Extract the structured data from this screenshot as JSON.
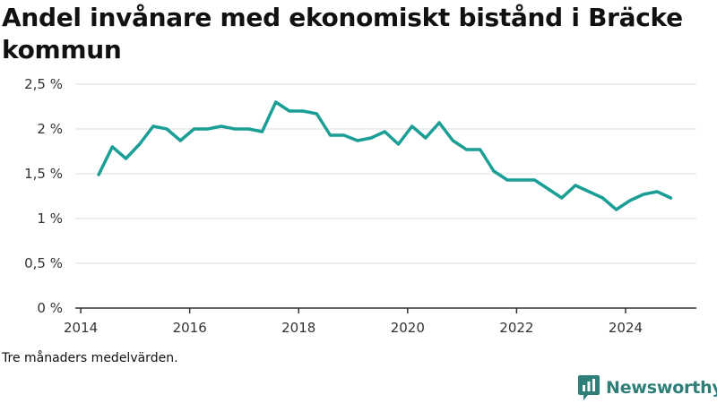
{
  "title": "Andel invånare med ekonomiskt bistånd i Bräcke kommun",
  "note": "Tre månaders medelvärden.",
  "brand": {
    "name": "Newsworthy",
    "logo_icon": "newsworthy-logo-icon",
    "color": "#2f7f79"
  },
  "chart_data": {
    "type": "line",
    "title": "Andel invånare med ekonomiskt bistånd i Bräcke kommun",
    "xlabel": "",
    "ylabel": "",
    "ylim": [
      0,
      2.5
    ],
    "xlim": [
      2013.9,
      2025.3
    ],
    "yticks": [
      0,
      0.5,
      1,
      1.5,
      2,
      2.5
    ],
    "ytick_labels": [
      "0 %",
      "0,5 %",
      "1 %",
      "1,5 %",
      "2 %",
      "2,5 %"
    ],
    "xticks": [
      2014,
      2016,
      2018,
      2020,
      2022,
      2024
    ],
    "xtick_labels": [
      "2014",
      "2016",
      "2018",
      "2020",
      "2022",
      "2024"
    ],
    "grid": "horizontal",
    "legend": "none",
    "series": [
      {
        "color": "#1a9e96",
        "x": [
          2014.33,
          2014.58,
          2014.83,
          2015.08,
          2015.33,
          2015.58,
          2015.83,
          2016.08,
          2016.33,
          2016.58,
          2016.83,
          2017.08,
          2017.33,
          2017.58,
          2017.83,
          2018.08,
          2018.33,
          2018.58,
          2018.83,
          2019.08,
          2019.33,
          2019.58,
          2019.83,
          2020.08,
          2020.33,
          2020.58,
          2020.83,
          2021.08,
          2021.33,
          2021.58,
          2021.83,
          2022.08,
          2022.33,
          2022.58,
          2022.83,
          2023.08,
          2023.33,
          2023.58,
          2023.83,
          2024.08,
          2024.33,
          2024.58,
          2024.83
        ],
        "y": [
          1.49,
          1.8,
          1.67,
          1.83,
          2.03,
          2.0,
          1.87,
          2.0,
          2.0,
          2.03,
          2.0,
          2.0,
          1.97,
          2.3,
          2.2,
          2.2,
          2.17,
          1.93,
          1.93,
          1.87,
          1.9,
          1.97,
          1.83,
          2.03,
          1.9,
          2.07,
          1.87,
          1.77,
          1.77,
          1.53,
          1.43,
          1.43,
          1.43,
          1.33,
          1.23,
          1.37,
          1.3,
          1.23,
          1.1,
          1.2,
          1.27,
          1.3,
          1.23
        ]
      }
    ]
  }
}
